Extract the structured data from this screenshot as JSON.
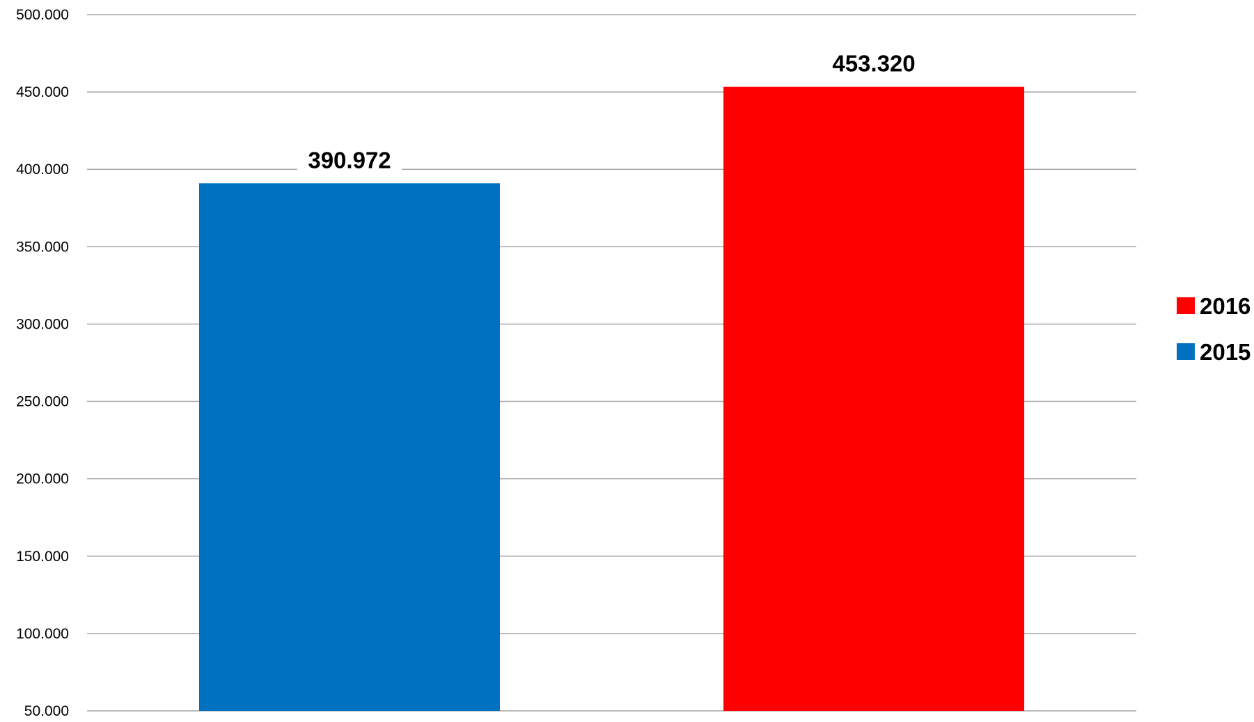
{
  "chart_data": {
    "type": "bar",
    "categories": [
      "2015",
      "2016"
    ],
    "values": [
      390972,
      453320
    ],
    "value_labels": [
      "390.972",
      "453.320"
    ],
    "colors": [
      "#0070c0",
      "#ff0000"
    ],
    "ylim": [
      50000,
      500000
    ],
    "yticks": [
      50000,
      100000,
      150000,
      200000,
      250000,
      300000,
      350000,
      400000,
      450000,
      500000
    ],
    "ytick_labels": [
      "50.000",
      "100.000",
      "150.000",
      "200.000",
      "250.000",
      "300.000",
      "350.000",
      "400.000",
      "450.000",
      "500.000"
    ],
    "grid": true,
    "legend": {
      "position": "right",
      "entries": [
        {
          "label": "2016",
          "color": "#ff0000"
        },
        {
          "label": "2015",
          "color": "#0070c0"
        }
      ]
    },
    "title": "",
    "xlabel": "",
    "ylabel": ""
  }
}
